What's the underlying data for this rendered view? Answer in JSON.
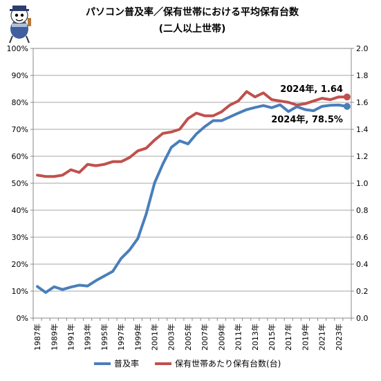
{
  "chart_data": {
    "type": "line",
    "title_line1": "パソコン普及率／保有世帯における平均保有台数",
    "title_line2": "(二人以上世帯)",
    "x": [
      "1987年",
      "1988年",
      "1989年",
      "1990年",
      "1991年",
      "1992年",
      "1993年",
      "1994年",
      "1995年",
      "1996年",
      "1997年",
      "1998年",
      "1999年",
      "2000年",
      "2001年",
      "2002年",
      "2003年",
      "2004年",
      "2005年",
      "2006年",
      "2007年",
      "2008年",
      "2009年",
      "2010年",
      "2011年",
      "2012年",
      "2013年",
      "2014年",
      "2015年",
      "2016年",
      "2017年",
      "2018年",
      "2019年",
      "2020年",
      "2021年",
      "2022年",
      "2023年",
      "2024年"
    ],
    "x_tick_labels": [
      "1987年",
      "1989年",
      "1991年",
      "1993年",
      "1995年",
      "1997年",
      "1999年",
      "2001年",
      "2003年",
      "2005年",
      "2007年",
      "2009年",
      "2011年",
      "2013年",
      "2015年",
      "2017年",
      "2019年",
      "2021年",
      "2023年"
    ],
    "y_left": {
      "min": 0,
      "max": 100,
      "step": 10,
      "suffix": "%",
      "tick_labels": [
        "0%",
        "10%",
        "20%",
        "30%",
        "40%",
        "50%",
        "60%",
        "70%",
        "80%",
        "90%",
        "100%"
      ]
    },
    "y_right": {
      "min": 0,
      "max": 2.0,
      "step": 0.2,
      "tick_labels": [
        "0.0",
        "0.2",
        "0.4",
        "0.6",
        "0.8",
        "1.0",
        "1.2",
        "1.4",
        "1.6",
        "1.8",
        "2.0"
      ]
    },
    "grid": true,
    "legend_position": "bottom",
    "series": [
      {
        "name": "普及率",
        "axis": "left",
        "color": "#4a7ebb",
        "values": [
          11.7,
          9.5,
          11.6,
          10.6,
          11.5,
          12.2,
          11.9,
          13.9,
          15.6,
          17.3,
          22.1,
          25.2,
          29.5,
          38.6,
          50.1,
          57.2,
          63.3,
          65.7,
          64.6,
          68.3,
          71.0,
          73.2,
          73.2,
          74.6,
          76.0,
          77.3,
          78.1,
          78.8,
          78.0,
          79.1,
          76.6,
          78.4,
          77.3,
          76.9,
          78.5,
          78.9,
          79.0,
          78.5
        ]
      },
      {
        "name": "保有世帯あたり保有台数(台)",
        "axis": "right",
        "color": "#c0504d",
        "values": [
          1.06,
          1.05,
          1.05,
          1.06,
          1.1,
          1.08,
          1.14,
          1.13,
          1.14,
          1.16,
          1.16,
          1.19,
          1.24,
          1.26,
          1.32,
          1.37,
          1.38,
          1.4,
          1.48,
          1.52,
          1.5,
          1.5,
          1.53,
          1.58,
          1.61,
          1.68,
          1.64,
          1.67,
          1.62,
          1.61,
          1.6,
          1.58,
          1.59,
          1.61,
          1.63,
          1.62,
          1.64,
          1.64
        ]
      }
    ],
    "annotations": [
      {
        "series_index": 1,
        "point_index": 37,
        "text": "2024年, 1.64"
      },
      {
        "series_index": 0,
        "point_index": 37,
        "text": "2024年, 78.5%"
      }
    ]
  },
  "mascot_icon": "mascot-character-icon"
}
